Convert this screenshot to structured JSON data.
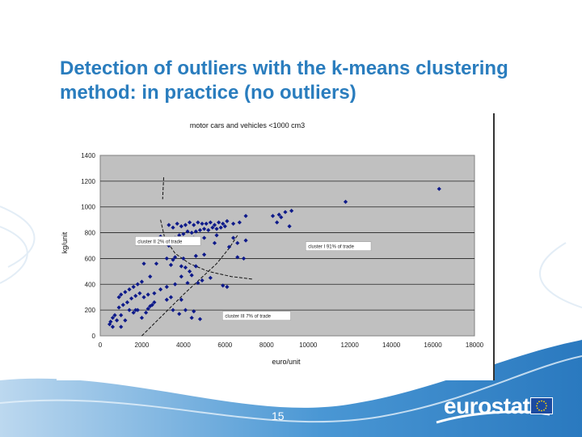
{
  "slide": {
    "title": "Detection of outliers with the k-means clustering method: in practice (no outliers)",
    "page_number": "15",
    "logo": "eurostat",
    "colors": {
      "title": "#2a7dbe",
      "footer_wave": "#3d8fd0",
      "plot_area": "#c0c0c0",
      "marker": "#0e1a8a"
    }
  },
  "chart_data": {
    "type": "scatter",
    "title": "motor cars and vehicles <1000 cm3",
    "xlabel": "euro/unit",
    "ylabel": "kg/unit",
    "xlim": [
      0,
      18000
    ],
    "ylim": [
      0,
      1400
    ],
    "x_ticks": [
      "0",
      "2000",
      "4000",
      "6000",
      "8000",
      "10000",
      "12000",
      "14000",
      "16000",
      "18000"
    ],
    "y_ticks": [
      "0",
      "200",
      "400",
      "600",
      "800",
      "1000",
      "1200",
      "1400"
    ],
    "grid": "horizontal",
    "annotations": [
      {
        "text": "cluster II 2% of trade",
        "x": 1800,
        "y": 720
      },
      {
        "text": "cluster I 91% of trade",
        "x": 10000,
        "y": 680
      },
      {
        "text": "cluster III 7% of trade",
        "x": 6000,
        "y": 140
      }
    ],
    "boundaries": [
      {
        "type": "line",
        "points": [
          [
            3050,
            1230
          ],
          [
            3000,
            1060
          ]
        ]
      },
      {
        "type": "curve",
        "points": [
          [
            2900,
            900
          ],
          [
            3100,
            760
          ],
          [
            3600,
            640
          ],
          [
            4300,
            560
          ],
          [
            5200,
            500
          ],
          [
            6300,
            460
          ],
          [
            7300,
            440
          ]
        ]
      },
      {
        "type": "curve",
        "points": [
          [
            2000,
            0
          ],
          [
            3000,
            160
          ],
          [
            4000,
            320
          ],
          [
            5000,
            470
          ],
          [
            5600,
            560
          ],
          [
            6200,
            680
          ],
          [
            6600,
            780
          ]
        ]
      }
    ],
    "series": [
      {
        "points": [
          [
            16300,
            1140
          ],
          [
            11800,
            1040
          ],
          [
            9200,
            970
          ],
          [
            8900,
            960
          ],
          [
            8600,
            940
          ],
          [
            8300,
            930
          ],
          [
            8700,
            920
          ],
          [
            8500,
            880
          ],
          [
            7000,
            930
          ],
          [
            9100,
            850
          ],
          [
            6700,
            880
          ],
          [
            6400,
            870
          ],
          [
            6100,
            890
          ],
          [
            5900,
            870
          ],
          [
            5700,
            880
          ],
          [
            5500,
            860
          ],
          [
            5300,
            880
          ],
          [
            5100,
            870
          ],
          [
            4900,
            870
          ],
          [
            4700,
            880
          ],
          [
            4500,
            860
          ],
          [
            4300,
            880
          ],
          [
            4100,
            860
          ],
          [
            3900,
            850
          ],
          [
            3700,
            870
          ],
          [
            3500,
            840
          ],
          [
            3300,
            860
          ],
          [
            6000,
            850
          ],
          [
            5800,
            840
          ],
          [
            5600,
            830
          ],
          [
            5400,
            840
          ],
          [
            5200,
            820
          ],
          [
            5000,
            830
          ],
          [
            4800,
            820
          ],
          [
            4600,
            810
          ],
          [
            4400,
            800
          ],
          [
            4200,
            810
          ],
          [
            4000,
            790
          ],
          [
            3800,
            780
          ],
          [
            3600,
            760
          ],
          [
            4500,
            760
          ],
          [
            5000,
            760
          ],
          [
            5600,
            780
          ],
          [
            6400,
            760
          ],
          [
            7000,
            740
          ],
          [
            6600,
            720
          ],
          [
            5500,
            720
          ],
          [
            4200,
            720
          ],
          [
            3000,
            740
          ],
          [
            3300,
            700
          ],
          [
            2900,
            770
          ],
          [
            6200,
            690
          ],
          [
            6600,
            610
          ],
          [
            6900,
            600
          ],
          [
            5000,
            630
          ],
          [
            4600,
            620
          ],
          [
            4000,
            600
          ],
          [
            3600,
            610
          ],
          [
            3500,
            590
          ],
          [
            3200,
            600
          ],
          [
            3400,
            550
          ],
          [
            4600,
            540
          ],
          [
            4100,
            530
          ],
          [
            3900,
            540
          ],
          [
            4300,
            500
          ],
          [
            4400,
            470
          ],
          [
            3900,
            460
          ],
          [
            5300,
            450
          ],
          [
            4900,
            430
          ],
          [
            4700,
            410
          ],
          [
            4200,
            410
          ],
          [
            3600,
            400
          ],
          [
            3200,
            380
          ],
          [
            2900,
            360
          ],
          [
            6100,
            380
          ],
          [
            5900,
            390
          ],
          [
            3200,
            280
          ],
          [
            2600,
            260
          ],
          [
            2500,
            240
          ],
          [
            2400,
            230
          ],
          [
            2300,
            210
          ],
          [
            2700,
            560
          ],
          [
            2100,
            560
          ],
          [
            2400,
            460
          ],
          [
            2000,
            420
          ],
          [
            1800,
            400
          ],
          [
            1600,
            380
          ],
          [
            1400,
            360
          ],
          [
            1200,
            340
          ],
          [
            1000,
            320
          ],
          [
            900,
            300
          ],
          [
            1500,
            290
          ],
          [
            1700,
            310
          ],
          [
            1900,
            330
          ],
          [
            2100,
            300
          ],
          [
            2300,
            320
          ],
          [
            1300,
            260
          ],
          [
            1100,
            240
          ],
          [
            900,
            220
          ],
          [
            1400,
            200
          ],
          [
            1600,
            180
          ],
          [
            1800,
            200
          ],
          [
            1000,
            160
          ],
          [
            700,
            160
          ],
          [
            600,
            140
          ],
          [
            500,
            110
          ],
          [
            450,
            90
          ],
          [
            600,
            70
          ],
          [
            800,
            120
          ],
          [
            1200,
            120
          ],
          [
            2000,
            140
          ],
          [
            2200,
            180
          ],
          [
            1000,
            70
          ],
          [
            1700,
            200
          ],
          [
            3500,
            200
          ],
          [
            3800,
            170
          ],
          [
            4100,
            200
          ],
          [
            4500,
            190
          ],
          [
            4400,
            140
          ],
          [
            4800,
            130
          ],
          [
            3400,
            300
          ],
          [
            3900,
            280
          ],
          [
            2600,
            330
          ]
        ]
      }
    ]
  }
}
